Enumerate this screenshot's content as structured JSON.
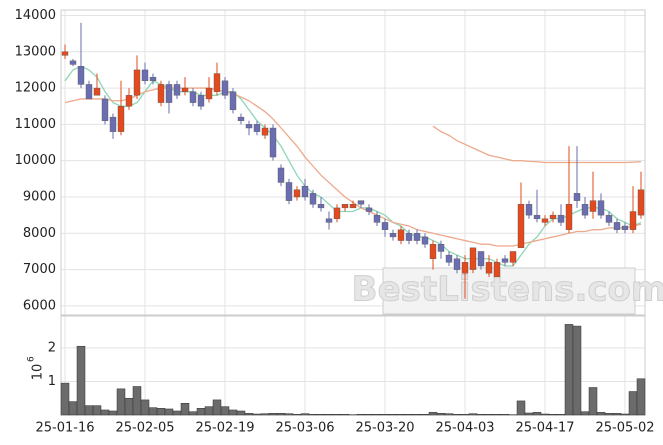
{
  "chart_data": {
    "type": "candlestick",
    "watermark": "BestListens.com",
    "up_color": "#e34a1e",
    "down_color": "#6a6eb0",
    "volume_color": "#6b6b6b",
    "categories": [
      "25-01-16",
      null,
      null,
      null,
      null,
      null,
      null,
      null,
      null,
      null,
      "25-02-05",
      null,
      null,
      null,
      null,
      null,
      null,
      null,
      null,
      null,
      "25-02-19",
      null,
      null,
      null,
      null,
      null,
      null,
      null,
      null,
      null,
      "25-03-06",
      null,
      null,
      null,
      null,
      null,
      null,
      null,
      null,
      null,
      "25-03-20",
      null,
      null,
      null,
      null,
      null,
      null,
      null,
      null,
      null,
      "25-04-03",
      null,
      null,
      null,
      null,
      null,
      null,
      null,
      null,
      null,
      "25-04-17",
      null,
      null,
      null,
      null,
      null,
      null,
      null,
      null,
      null,
      "25-05-02",
      null,
      null
    ],
    "open": [
      12900,
      12750,
      12600,
      12100,
      11800,
      11700,
      11200,
      10800,
      11500,
      11800,
      12500,
      12300,
      11600,
      12100,
      12100,
      11900,
      11900,
      11800,
      11700,
      11900,
      12200,
      11900,
      11200,
      11000,
      11000,
      10700,
      10900,
      9800,
      9400,
      9000,
      9300,
      9100,
      8800,
      8400,
      8400,
      8700,
      8700,
      8900,
      8700,
      8500,
      8300,
      8000,
      7800,
      8000,
      8000,
      7900,
      7300,
      7700,
      7400,
      7300,
      6900,
      7000,
      7500,
      6900,
      6800,
      7300,
      7200,
      7600,
      8800,
      8500,
      8300,
      8400,
      8500,
      8100,
      9100,
      8800,
      8600,
      8900,
      8500,
      8300,
      8200,
      8100,
      8500
    ],
    "high": [
      13200,
      12800,
      13800,
      12200,
      12400,
      11800,
      11300,
      12200,
      12000,
      12900,
      12700,
      12400,
      12200,
      12200,
      12200,
      12300,
      12000,
      11900,
      12300,
      12700,
      12300,
      12000,
      11300,
      11100,
      11100,
      11000,
      11000,
      9900,
      9500,
      9300,
      9500,
      9200,
      9000,
      8600,
      8800,
      8800,
      8900,
      8900,
      8800,
      8600,
      8400,
      8100,
      8200,
      8100,
      8100,
      8000,
      7800,
      7800,
      7500,
      7400,
      7400,
      7600,
      7500,
      7400,
      7300,
      7400,
      7500,
      9400,
      8900,
      9200,
      8500,
      8600,
      8800,
      10400,
      10400,
      9000,
      9700,
      9100,
      8600,
      8400,
      8300,
      9300,
      9700
    ],
    "low": [
      12800,
      12600,
      12000,
      11700,
      11800,
      11000,
      10600,
      10700,
      11400,
      11700,
      12100,
      12100,
      11500,
      11300,
      11700,
      11800,
      11500,
      11400,
      11600,
      11800,
      11700,
      11300,
      11000,
      10700,
      10700,
      10600,
      10000,
      9300,
      8800,
      8900,
      8900,
      8700,
      8600,
      8100,
      8300,
      8600,
      8700,
      8700,
      8500,
      8200,
      7900,
      7800,
      7700,
      7700,
      7700,
      7600,
      7000,
      7300,
      7100,
      6900,
      6200,
      6900,
      7000,
      6800,
      6800,
      7100,
      7100,
      7600,
      8400,
      8300,
      8200,
      8300,
      8200,
      8000,
      8700,
      8400,
      8400,
      8400,
      8200,
      8000,
      8000,
      8000,
      8400
    ],
    "close": [
      13000,
      12650,
      12100,
      11700,
      12000,
      11100,
      10800,
      11500,
      11800,
      12500,
      12200,
      12200,
      12100,
      11600,
      11800,
      12000,
      11600,
      11500,
      12000,
      12400,
      11800,
      11400,
      11100,
      10900,
      10800,
      10900,
      10100,
      9400,
      8900,
      9200,
      9000,
      8800,
      8700,
      8300,
      8700,
      8800,
      8800,
      8800,
      8600,
      8300,
      8100,
      7900,
      8100,
      7800,
      7800,
      7700,
      7700,
      7500,
      7200,
      7000,
      7200,
      7600,
      7100,
      7200,
      7200,
      7200,
      7500,
      8800,
      8500,
      8400,
      8400,
      8500,
      8300,
      8800,
      8900,
      8500,
      8900,
      8500,
      8300,
      8100,
      8100,
      8600,
      9200
    ],
    "volume": [
      0.95,
      0.4,
      2.05,
      0.28,
      0.28,
      0.15,
      0.12,
      0.78,
      0.5,
      0.85,
      0.45,
      0.22,
      0.2,
      0.18,
      0.12,
      0.35,
      0.1,
      0.2,
      0.25,
      0.45,
      0.25,
      0.15,
      0.12,
      0.05,
      0.03,
      0.04,
      0.05,
      0.05,
      0.04,
      0.02,
      0.04,
      0.02,
      0.02,
      0.02,
      0.02,
      0.02,
      0.01,
      0.02,
      0.02,
      0.02,
      0.02,
      0.02,
      0.02,
      0.02,
      0.02,
      0.02,
      0.08,
      0.05,
      0.04,
      0.02,
      0.02,
      0.04,
      0.02,
      0.02,
      0.02,
      0.02,
      0.01,
      0.42,
      0.06,
      0.08,
      0.03,
      0.02,
      0.02,
      2.7,
      2.65,
      0.1,
      0.82,
      0.08,
      0.05,
      0.05,
      0.03,
      0.7,
      1.08
    ],
    "moving_averages": [
      {
        "color": "#8fd6b4",
        "values": [
          12200,
          12500,
          12600,
          12500,
          12300,
          11900,
          11600,
          11500,
          11500,
          11600,
          11900,
          12200,
          12100,
          12000,
          11900,
          11900,
          11900,
          11800,
          11800,
          11800,
          11900,
          11900,
          11700,
          11400,
          11100,
          10900,
          10700,
          10400,
          10000,
          9600,
          9300,
          9100,
          9000,
          8800,
          8600,
          8600,
          8600,
          8700,
          8700,
          8600,
          8500,
          8300,
          8200,
          8000,
          7900,
          7900,
          7800,
          7700,
          7500,
          7400,
          7300,
          7300,
          7300,
          7300,
          7200,
          7100,
          7100,
          7400,
          7700,
          7900,
          8200,
          8400,
          8400,
          8500,
          8600,
          8700,
          8700,
          8700,
          8600,
          8400,
          8300,
          8200,
          8300
        ]
      },
      {
        "color": "#eda98c",
        "values": [
          11600,
          11650,
          11700,
          11700,
          11700,
          11700,
          11650,
          11650,
          11700,
          11800,
          11900,
          11950,
          12000,
          12000,
          12000,
          12000,
          12000,
          12000,
          12000,
          11950,
          11900,
          11850,
          11750,
          11650,
          11500,
          11350,
          11150,
          10900,
          10650,
          10400,
          10100,
          9850,
          9600,
          9400,
          9200,
          9000,
          8850,
          8700,
          8600,
          8500,
          8400,
          8300,
          8250,
          8200,
          8100,
          8050,
          8000,
          7950,
          7900,
          7850,
          7800,
          7750,
          7700,
          7700,
          7650,
          7650,
          7650,
          7700,
          7750,
          7800,
          7850,
          7900,
          7950,
          8000,
          8050,
          8050,
          8100,
          8100,
          8150,
          8150,
          8150,
          8200,
          8250
        ]
      },
      {
        "color": "#eda98c",
        "values": [
          null,
          null,
          null,
          null,
          null,
          null,
          null,
          null,
          null,
          null,
          null,
          null,
          null,
          null,
          null,
          null,
          null,
          null,
          null,
          null,
          null,
          null,
          null,
          null,
          null,
          null,
          null,
          null,
          null,
          null,
          null,
          null,
          null,
          null,
          null,
          null,
          null,
          null,
          null,
          null,
          null,
          null,
          null,
          null,
          null,
          null,
          10950,
          10800,
          10700,
          10550,
          10450,
          10350,
          10250,
          10150,
          10100,
          10050,
          10000,
          10000,
          9980,
          9970,
          9950,
          9950,
          9950,
          9950,
          9950,
          9950,
          9950,
          9950,
          9950,
          9950,
          9950,
          9960,
          9970
        ]
      }
    ],
    "ylim": [
      5750,
      14150
    ],
    "yticks": [
      6000,
      7000,
      8000,
      9000,
      10000,
      11000,
      12000,
      13000,
      14000
    ],
    "volume_ylim": [
      0,
      2.95
    ],
    "volume_yticks": [
      1,
      2
    ],
    "volume_ylabel_base": "10",
    "volume_ylabel_exp": "6",
    "grid": true
  }
}
